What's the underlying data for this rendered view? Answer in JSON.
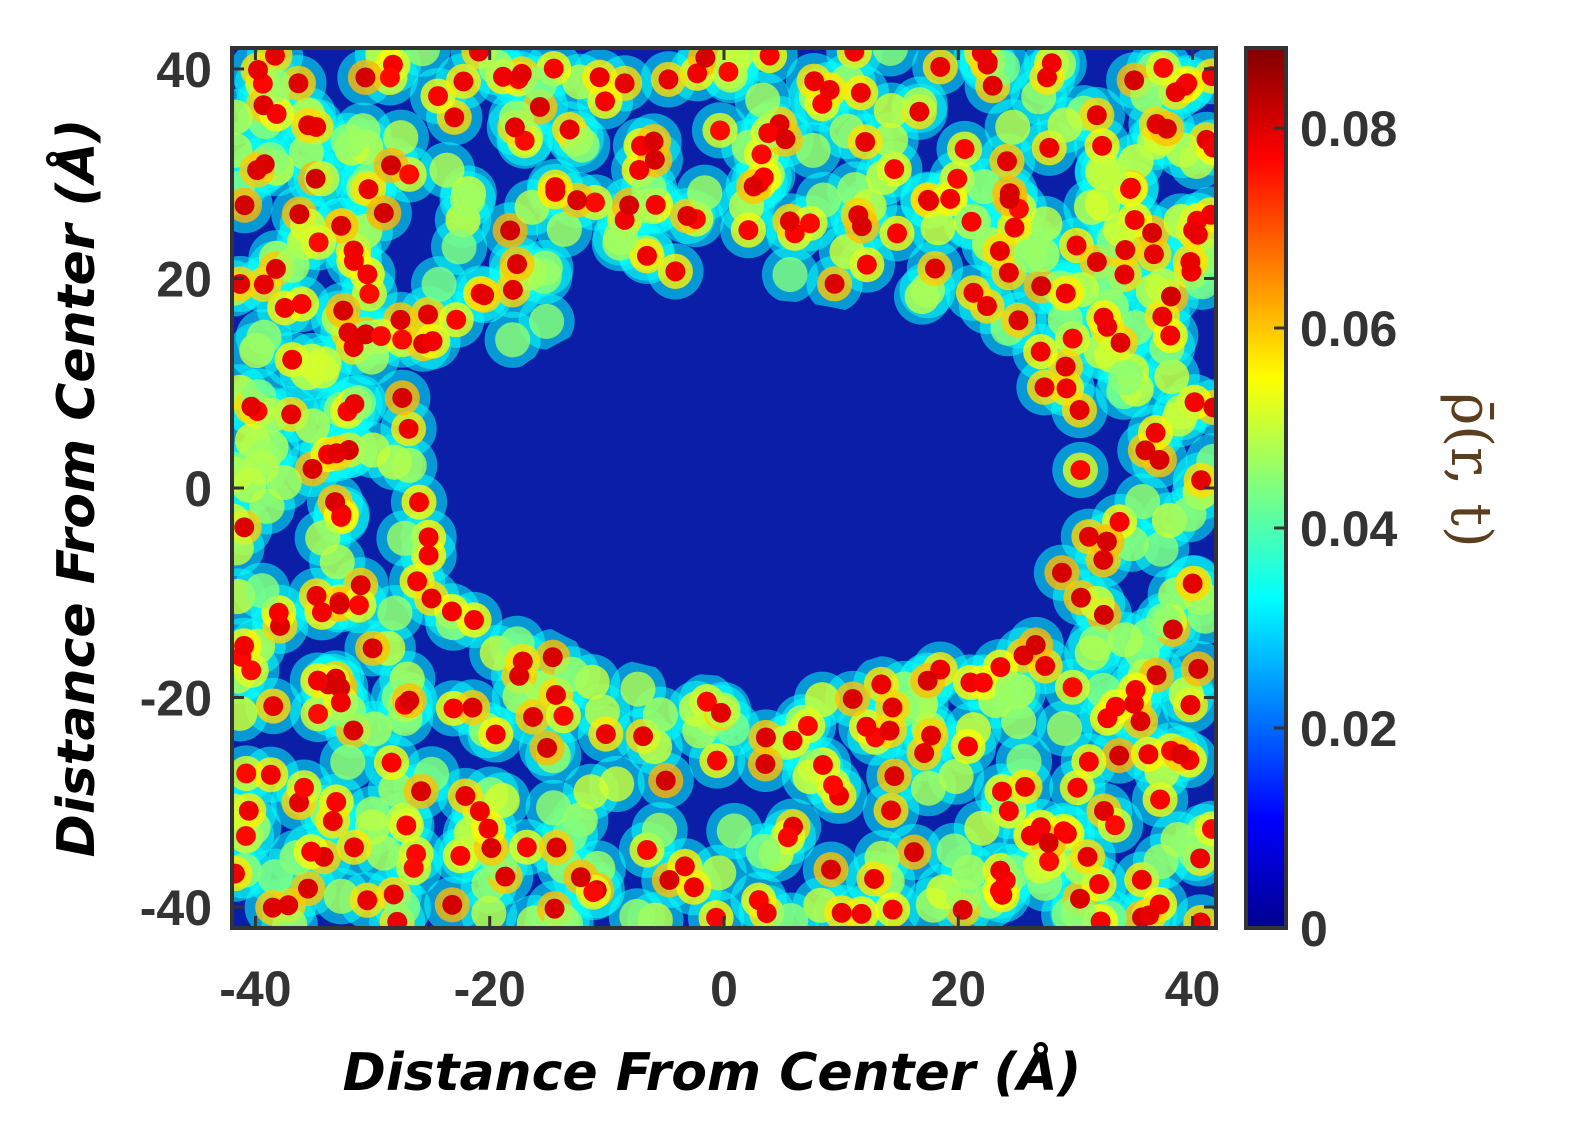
{
  "chart_data": {
    "type": "heatmap",
    "title": "",
    "xlabel": "Distance From Center (Å)",
    "ylabel": "Distance From Center (Å)",
    "colorbar_label": "ρ̄(r, t)",
    "xlim": [
      -42,
      42
    ],
    "ylim": [
      -42,
      42
    ],
    "x_ticks": [
      -40,
      -20,
      0,
      20,
      40
    ],
    "y_ticks": [
      -40,
      -20,
      0,
      20,
      40
    ],
    "colorbar_range": [
      0,
      0.088
    ],
    "colorbar_ticks": [
      0,
      0.02,
      0.04,
      0.06,
      0.08
    ],
    "colorbar_tick_labels": [
      "0",
      "0.02",
      "0.04",
      "0.06",
      "0.08"
    ],
    "colormap": "jet",
    "grid": false,
    "description_of_field": {
      "void_region": {
        "x_range": [
          -26,
          30
        ],
        "y_range": [
          -20,
          20
        ]
      },
      "peak_value": 0.08,
      "background_value": 0.0
    },
    "colors": {
      "jet_low": "#00008f",
      "jet_mid_low": "#0080ff",
      "jet_mid": "#40ffbf",
      "jet_mid_high": "#ffff00",
      "jet_high": "#ff0000",
      "jet_max": "#800000",
      "tick_text": "#333333",
      "cb_label": "#5a3e1e"
    }
  }
}
